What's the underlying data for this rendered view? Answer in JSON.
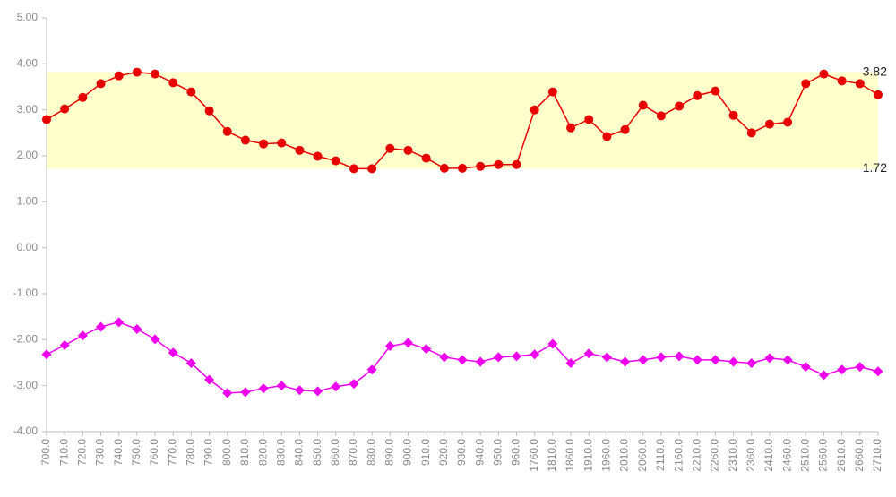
{
  "chart_data": {
    "type": "line",
    "categories": [
      "700.0",
      "710.0",
      "720.0",
      "730.0",
      "740.0",
      "750.0",
      "760.0",
      "770.0",
      "780.0",
      "790.0",
      "800.0",
      "810.0",
      "820.0",
      "830.0",
      "840.0",
      "850.0",
      "860.0",
      "870.0",
      "880.0",
      "890.0",
      "900.0",
      "910.0",
      "920.0",
      "930.0",
      "940.0",
      "950.0",
      "960.0",
      "1760.0",
      "1810.0",
      "1860.0",
      "1910.0",
      "1960.0",
      "2010.0",
      "2060.0",
      "2110.0",
      "2160.0",
      "2210.0",
      "2260.0",
      "2310.0",
      "2360.0",
      "2410.0",
      "2460.0",
      "2510.0",
      "2560.0",
      "2610.0",
      "2660.0",
      "2710.0"
    ],
    "series": [
      {
        "color": "#e60000",
        "marker": "circle",
        "values": [
          2.79,
          3.02,
          3.27,
          3.57,
          3.74,
          3.82,
          3.78,
          3.59,
          3.39,
          2.98,
          2.53,
          2.34,
          2.26,
          2.28,
          2.12,
          1.99,
          1.89,
          1.72,
          1.72,
          2.16,
          2.12,
          1.95,
          1.73,
          1.73,
          1.77,
          1.81,
          1.81,
          3.0,
          3.39,
          2.61,
          2.79,
          2.42,
          2.57,
          3.1,
          2.87,
          3.08,
          3.31,
          3.41,
          2.88,
          2.5,
          2.69,
          2.73,
          3.57,
          3.78,
          3.63,
          3.57,
          3.33
        ]
      },
      {
        "color": "#ee00ee",
        "marker": "diamond",
        "values": [
          -2.32,
          -2.12,
          -1.91,
          -1.72,
          -1.62,
          -1.77,
          -1.99,
          -2.28,
          -2.51,
          -2.87,
          -3.16,
          -3.14,
          -3.06,
          -3.0,
          -3.1,
          -3.12,
          -3.02,
          -2.96,
          -2.65,
          -2.14,
          -2.07,
          -2.2,
          -2.38,
          -2.44,
          -2.48,
          -2.38,
          -2.36,
          -2.32,
          -2.09,
          -2.51,
          -2.3,
          -2.38,
          -2.48,
          -2.44,
          -2.38,
          -2.36,
          -2.44,
          -2.44,
          -2.48,
          -2.51,
          -2.4,
          -2.44,
          -2.59,
          -2.77,
          -2.65,
          -2.59,
          -2.69
        ]
      }
    ],
    "band": {
      "range": [
        1.72,
        3.82
      ],
      "color": "#ffffcc"
    },
    "ylim": [
      -4,
      5
    ],
    "yticks": [
      {
        "value": -4,
        "label": "-4.00"
      },
      {
        "value": -3,
        "label": "-3.00"
      },
      {
        "value": -2,
        "label": "-2.00"
      },
      {
        "value": -1,
        "label": "-1.00"
      },
      {
        "value": 0,
        "label": "0.00"
      },
      {
        "value": 1,
        "label": "1.00"
      },
      {
        "value": 2,
        "label": "2.00"
      },
      {
        "value": 3,
        "label": "3.00"
      },
      {
        "value": 4,
        "label": "4.00"
      },
      {
        "value": 5,
        "label": "5.00"
      }
    ],
    "grid": false
  }
}
